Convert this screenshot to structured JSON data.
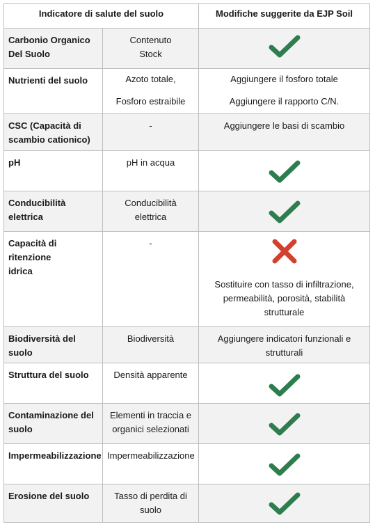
{
  "header": {
    "col_indicator": "Indicatore di salute del suolo",
    "col_modifications": "Modifiche suggerite da EJP Soil"
  },
  "rows": [
    {
      "indicator": "Carbonio Organico\nDel Suolo",
      "metric": "Contenuto\nStock",
      "status": "check-icon"
    },
    {
      "indicator": "Nutrienti del suolo",
      "metric": "Azoto totale,\n\nFosforo estraibile",
      "modification": "Aggiungere il fosforo totale\n\nAggiungere il rapporto C/N."
    },
    {
      "indicator": "CSC (Capacità di\nscambio cationico)",
      "metric": "-",
      "modification": "Aggiungere le basi di scambio"
    },
    {
      "indicator": "pH",
      "metric": "pH in acqua",
      "status": "check-icon"
    },
    {
      "indicator": "Conducibilità\nelettrica",
      "metric": "Conducibilità\nelettrica",
      "status": "check-icon"
    },
    {
      "indicator": "Capacità di ritenzione\nidrica",
      "metric": "-",
      "status": "cross-icon",
      "modification": "Sostituire con tasso di infiltrazione,\npermeabilità, porosità, stabilità\nstrutturale"
    },
    {
      "indicator": "Biodiversità del suolo",
      "metric": "Biodiversità",
      "modification": "Aggiungere indicatori funzionali e\nstrutturali"
    },
    {
      "indicator": "Struttura del suolo",
      "metric": "Densità apparente",
      "status": "check-icon"
    },
    {
      "indicator": "Contaminazione del\nsuolo",
      "metric": "Elementi in traccia e\norganici selezionati",
      "status": "check-icon"
    },
    {
      "indicator": "Impermeabilizzazione",
      "metric": "Impermeabilizzazione",
      "status": "check-icon"
    },
    {
      "indicator": "Erosione del suolo",
      "metric": "Tasso di perdita di\nsuolo",
      "status": "check-icon"
    }
  ],
  "colors": {
    "check": "#2e7d4f",
    "cross": "#d2412f",
    "shade": "#f2f2f2",
    "border": "#bdbdbd"
  }
}
